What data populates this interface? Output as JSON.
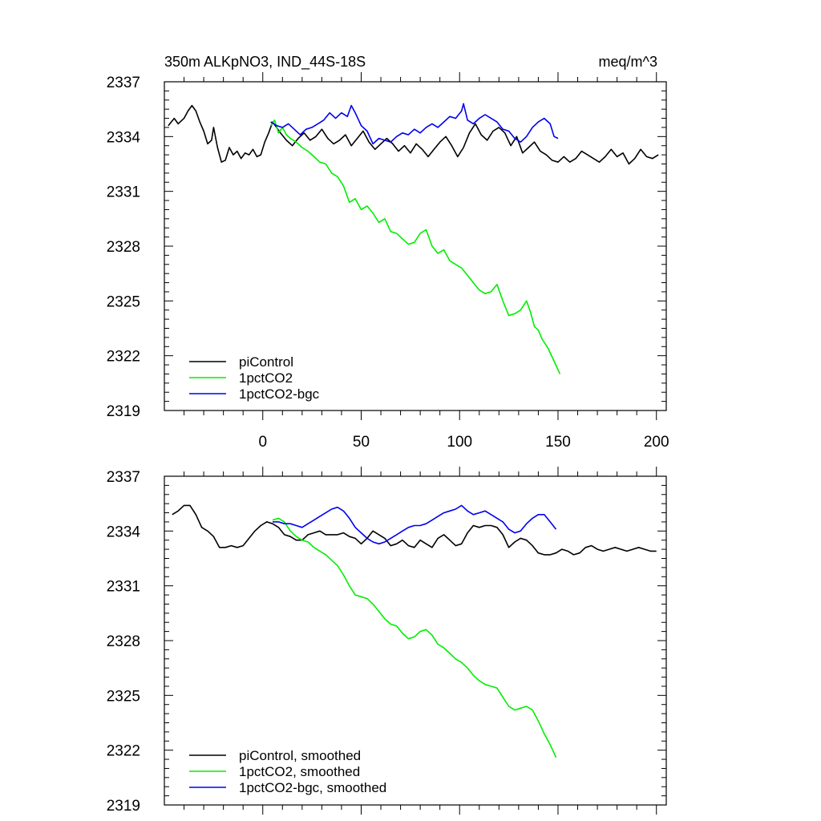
{
  "chart_data": [
    {
      "type": "line",
      "title": "350m ALKpNO3, IND_44S-18S",
      "units_label": "meq/m^3",
      "xlim": [
        -50,
        205
      ],
      "ylim": [
        2319,
        2337
      ],
      "x_ticks": [
        0,
        50,
        100,
        150,
        200
      ],
      "x_tick_labels": [
        "0",
        "50",
        "100",
        "150",
        "200"
      ],
      "y_ticks": [
        2319,
        2322,
        2325,
        2328,
        2331,
        2334,
        2337
      ],
      "y_tick_labels": [
        "2319",
        "2322",
        "2325",
        "2328",
        "2331",
        "2334",
        "2337"
      ],
      "legend_position": "bottom-left",
      "series": [
        {
          "name": "piControl",
          "color": "#000000",
          "x": [
            -48,
            -45,
            -43,
            -40,
            -38,
            -36,
            -34,
            -32,
            -30,
            -28,
            -26,
            -25,
            -23,
            -21,
            -19,
            -17,
            -15,
            -13,
            -11,
            -9,
            -7,
            -5,
            -3,
            -1,
            1,
            3,
            5,
            7,
            9,
            12,
            15,
            18,
            21,
            24,
            27,
            30,
            33,
            36,
            39,
            42,
            45,
            48,
            51,
            54,
            57,
            60,
            63,
            66,
            69,
            72,
            75,
            78,
            81,
            84,
            87,
            90,
            93,
            96,
            99,
            102,
            105,
            108,
            111,
            114,
            117,
            120,
            123,
            126,
            129,
            132,
            135,
            138,
            141,
            144,
            147,
            150,
            153,
            156,
            159,
            162,
            165,
            168,
            171,
            174,
            177,
            180,
            183,
            186,
            189,
            192,
            195,
            198,
            201
          ],
          "y": [
            2334.6,
            2335.0,
            2334.7,
            2335.0,
            2335.4,
            2335.7,
            2335.4,
            2334.8,
            2334.3,
            2333.6,
            2333.8,
            2334.5,
            2333.4,
            2332.6,
            2332.7,
            2333.4,
            2333.0,
            2333.2,
            2332.8,
            2333.1,
            2333.0,
            2333.3,
            2332.9,
            2333.0,
            2333.7,
            2334.2,
            2334.8,
            2334.5,
            2334.2,
            2333.8,
            2333.5,
            2333.9,
            2334.2,
            2333.8,
            2334.0,
            2334.4,
            2333.9,
            2333.6,
            2333.8,
            2334.1,
            2333.5,
            2333.9,
            2334.3,
            2333.7,
            2333.3,
            2333.6,
            2333.9,
            2333.6,
            2333.2,
            2333.5,
            2333.1,
            2333.6,
            2333.3,
            2332.9,
            2333.3,
            2333.7,
            2334.0,
            2333.5,
            2332.9,
            2333.4,
            2334.2,
            2334.7,
            2334.1,
            2333.8,
            2334.3,
            2334.5,
            2334.2,
            2333.5,
            2334.0,
            2333.1,
            2333.4,
            2333.7,
            2333.2,
            2333.0,
            2332.7,
            2332.6,
            2332.9,
            2332.6,
            2332.8,
            2333.2,
            2333.0,
            2332.8,
            2332.6,
            2332.9,
            2333.3,
            2332.9,
            2333.1,
            2332.5,
            2332.8,
            2333.3,
            2332.9,
            2332.8,
            2333.0
          ]
        },
        {
          "name": "1pctCO2",
          "color": "#00ee00",
          "x": [
            4,
            6,
            8,
            10,
            12,
            14,
            17,
            20,
            23,
            26,
            29,
            32,
            35,
            38,
            41,
            44,
            47,
            50,
            53,
            56,
            59,
            62,
            65,
            68,
            71,
            74,
            77,
            80,
            83,
            86,
            89,
            92,
            95,
            98,
            101,
            104,
            107,
            110,
            113,
            116,
            119,
            122,
            125,
            128,
            131,
            134,
            136,
            138,
            140,
            142,
            145,
            148,
            151
          ],
          "y": [
            2334.6,
            2334.9,
            2334.2,
            2334.5,
            2334.1,
            2333.9,
            2333.7,
            2333.4,
            2333.2,
            2332.9,
            2332.6,
            2332.5,
            2332.0,
            2331.8,
            2331.3,
            2330.4,
            2330.6,
            2330.0,
            2330.2,
            2329.8,
            2329.3,
            2329.5,
            2328.8,
            2328.7,
            2328.4,
            2328.1,
            2328.2,
            2328.7,
            2328.9,
            2328.0,
            2327.6,
            2327.8,
            2327.2,
            2327.0,
            2326.8,
            2326.4,
            2326.0,
            2325.6,
            2325.4,
            2325.5,
            2325.9,
            2325.0,
            2324.2,
            2324.3,
            2324.5,
            2325.0,
            2324.4,
            2323.6,
            2323.4,
            2322.9,
            2322.4,
            2321.7,
            2321.0
          ]
        },
        {
          "name": "1pctCO2-bgc",
          "color": "#0000ee",
          "x": [
            4,
            7,
            10,
            13,
            16,
            19,
            22,
            25,
            28,
            31,
            34,
            37,
            40,
            43,
            45,
            47,
            50,
            53,
            56,
            59,
            62,
            65,
            68,
            71,
            74,
            77,
            80,
            83,
            86,
            89,
            92,
            95,
            98,
            101,
            102,
            104,
            107,
            110,
            113,
            116,
            119,
            122,
            125,
            128,
            131,
            134,
            137,
            140,
            143,
            146,
            148,
            150
          ],
          "y": [
            2334.8,
            2334.6,
            2334.5,
            2334.7,
            2334.4,
            2334.1,
            2334.4,
            2334.5,
            2334.7,
            2334.9,
            2335.3,
            2335.0,
            2335.3,
            2335.1,
            2335.7,
            2335.3,
            2334.6,
            2334.3,
            2333.6,
            2333.9,
            2333.8,
            2333.7,
            2334.0,
            2334.2,
            2334.1,
            2334.4,
            2334.2,
            2334.5,
            2334.7,
            2334.5,
            2334.8,
            2335.1,
            2335.0,
            2335.4,
            2335.8,
            2334.9,
            2334.7,
            2335.0,
            2335.2,
            2335.0,
            2334.8,
            2334.4,
            2334.3,
            2333.9,
            2333.7,
            2334.0,
            2334.5,
            2334.8,
            2335.0,
            2334.7,
            2334.0,
            2333.9
          ]
        }
      ]
    },
    {
      "type": "line",
      "title": "",
      "xlim": [
        -50,
        205
      ],
      "ylim": [
        2319,
        2337
      ],
      "x_ticks": [
        0,
        50,
        100,
        150,
        200
      ],
      "y_ticks": [
        2319,
        2322,
        2325,
        2328,
        2331,
        2334,
        2337
      ],
      "y_tick_labels": [
        "2319",
        "2322",
        "2325",
        "2328",
        "2331",
        "2334",
        "2337"
      ],
      "legend_position": "bottom-left",
      "series": [
        {
          "name": "piControl, smoothed",
          "color": "#000000",
          "x": [
            -46,
            -43,
            -40,
            -37,
            -34,
            -31,
            -28,
            -25,
            -22,
            -19,
            -16,
            -13,
            -10,
            -7,
            -4,
            -1,
            2,
            5,
            8,
            11,
            14,
            17,
            20,
            23,
            26,
            29,
            32,
            35,
            38,
            41,
            44,
            47,
            50,
            53,
            56,
            59,
            62,
            65,
            68,
            71,
            74,
            77,
            80,
            83,
            86,
            89,
            92,
            95,
            98,
            101,
            104,
            107,
            110,
            113,
            116,
            119,
            122,
            125,
            128,
            131,
            134,
            137,
            140,
            143,
            146,
            149,
            152,
            155,
            158,
            161,
            164,
            167,
            170,
            173,
            176,
            179,
            182,
            185,
            188,
            191,
            194,
            197,
            200
          ],
          "y": [
            2334.9,
            2335.1,
            2335.4,
            2335.4,
            2334.9,
            2334.2,
            2334.0,
            2333.7,
            2333.1,
            2333.1,
            2333.2,
            2333.1,
            2333.2,
            2333.6,
            2334.0,
            2334.3,
            2334.5,
            2334.4,
            2334.2,
            2333.8,
            2333.7,
            2333.5,
            2333.5,
            2333.8,
            2333.9,
            2334.0,
            2333.8,
            2333.8,
            2333.8,
            2333.9,
            2333.7,
            2333.6,
            2333.3,
            2333.6,
            2334.0,
            2333.8,
            2333.6,
            2333.2,
            2333.3,
            2333.5,
            2333.2,
            2333.1,
            2333.5,
            2333.3,
            2333.1,
            2333.6,
            2333.8,
            2333.5,
            2333.2,
            2333.3,
            2333.9,
            2334.3,
            2334.2,
            2334.3,
            2334.3,
            2334.2,
            2333.8,
            2333.1,
            2333.4,
            2333.6,
            2333.5,
            2333.2,
            2332.8,
            2332.7,
            2332.7,
            2332.8,
            2333.0,
            2332.9,
            2332.7,
            2332.8,
            2333.1,
            2333.2,
            2333.0,
            2332.9,
            2333.0,
            2333.1,
            2333.0,
            2332.9,
            2333.0,
            2333.1,
            2333.0,
            2332.9,
            2332.9
          ]
        },
        {
          "name": "1pctCO2, smoothed",
          "color": "#00ee00",
          "x": [
            5,
            8,
            11,
            14,
            17,
            20,
            23,
            26,
            29,
            32,
            35,
            38,
            41,
            44,
            47,
            50,
            53,
            56,
            59,
            62,
            65,
            68,
            71,
            74,
            77,
            80,
            83,
            86,
            89,
            92,
            95,
            98,
            101,
            104,
            107,
            110,
            113,
            116,
            119,
            122,
            125,
            128,
            131,
            134,
            137,
            140,
            143,
            146,
            149
          ],
          "y": [
            2334.6,
            2334.7,
            2334.5,
            2334.0,
            2333.7,
            2333.5,
            2333.4,
            2333.1,
            2332.9,
            2332.7,
            2332.4,
            2332.1,
            2331.6,
            2331.0,
            2330.5,
            2330.4,
            2330.3,
            2330.0,
            2329.6,
            2329.2,
            2328.9,
            2328.8,
            2328.4,
            2328.1,
            2328.2,
            2328.5,
            2328.6,
            2328.3,
            2327.8,
            2327.6,
            2327.3,
            2327.0,
            2326.8,
            2326.5,
            2326.1,
            2325.8,
            2325.6,
            2325.5,
            2325.4,
            2324.9,
            2324.4,
            2324.2,
            2324.3,
            2324.4,
            2324.2,
            2323.6,
            2322.9,
            2322.3,
            2321.6
          ]
        },
        {
          "name": "1pctCO2-bgc, smoothed",
          "color": "#0000ee",
          "x": [
            5,
            8,
            11,
            14,
            17,
            20,
            23,
            26,
            29,
            32,
            35,
            38,
            41,
            44,
            47,
            50,
            53,
            56,
            59,
            62,
            65,
            68,
            71,
            74,
            77,
            80,
            83,
            86,
            89,
            92,
            95,
            98,
            101,
            104,
            107,
            110,
            113,
            116,
            119,
            122,
            125,
            128,
            131,
            134,
            137,
            140,
            143,
            146,
            149
          ],
          "y": [
            2334.5,
            2334.5,
            2334.4,
            2334.4,
            2334.3,
            2334.2,
            2334.4,
            2334.6,
            2334.8,
            2335.0,
            2335.2,
            2335.3,
            2335.1,
            2334.7,
            2334.2,
            2333.9,
            2333.6,
            2333.4,
            2333.3,
            2333.4,
            2333.6,
            2333.8,
            2334.0,
            2334.2,
            2334.3,
            2334.3,
            2334.4,
            2334.6,
            2334.8,
            2335.0,
            2335.1,
            2335.2,
            2335.4,
            2335.1,
            2334.9,
            2335.0,
            2335.1,
            2334.9,
            2334.7,
            2334.5,
            2334.1,
            2333.9,
            2334.0,
            2334.4,
            2334.7,
            2334.9,
            2334.9,
            2334.5,
            2334.1
          ]
        }
      ]
    }
  ]
}
